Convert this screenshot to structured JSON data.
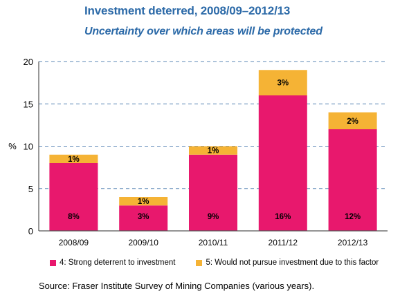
{
  "header": {
    "title": "Investment deterred, 2008/09–2012/13",
    "subtitle": "Uncertainty over which areas will be protected"
  },
  "colors": {
    "title": "#2c6aa8",
    "strong": "#e8186d",
    "would_not": "#f5b335",
    "grid": "#5b87b6",
    "axis": "#555555"
  },
  "chart_data": {
    "type": "bar",
    "stacked": true,
    "title": "Investment deterred, 2008/09–2012/13",
    "subtitle": "Uncertainty over which areas will be protected",
    "categories": [
      "2008/09",
      "2009/10",
      "2010/11",
      "2011/12",
      "2012/13"
    ],
    "series": [
      {
        "name": "4: Strong deterrent to investment",
        "values": [
          8,
          3,
          9,
          16,
          12
        ],
        "labels": [
          "8%",
          "3%",
          "9%",
          "16%",
          "12%"
        ],
        "color": "#e8186d"
      },
      {
        "name": "5: Would not pursue investment due to this factor",
        "values": [
          1,
          1,
          1,
          3,
          2
        ],
        "labels": [
          "1%",
          "1%",
          "1%",
          "3%",
          "2%"
        ],
        "color": "#f5b335"
      }
    ],
    "ylabel": "%",
    "xlabel": "",
    "ylim": [
      0,
      20
    ],
    "yticks": [
      0,
      5,
      10,
      15,
      20
    ],
    "grid": true,
    "legend_position": "bottom"
  },
  "source": "Source: Fraser Institute Survey of Mining Companies (various years)."
}
